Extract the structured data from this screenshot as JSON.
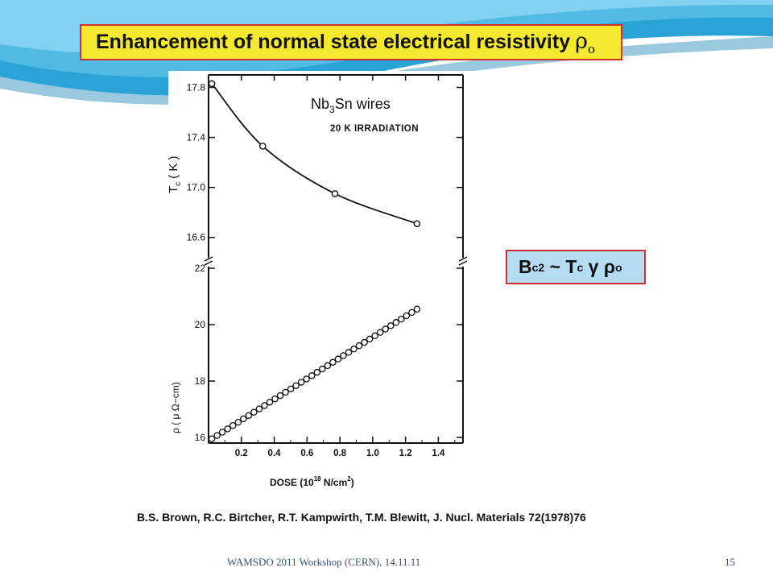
{
  "slide": {
    "title": "Enhancement of  normal state electrical resistivity",
    "title_symbol": "ρ",
    "title_symbol_sub": "o",
    "formula": {
      "b": "B",
      "b_sub": "c2",
      "rest": " ~ T",
      "t_sub": "c",
      "tail": " γ ρ",
      "tail_sub": "o"
    },
    "citation": "B.S. Brown, R.C. Birtcher, R.T. Kampwirth, T.M. Blewitt, J. Nucl. Materials 72(1978)76",
    "footer": "WAMSDO 2011 Workshop (CERN), 14.11.11",
    "page_number": "15",
    "colors": {
      "title_bg": "#f5e930",
      "box_border": "#d23030",
      "formula_bg": "#b4dcf3",
      "header_blue": "#2aa3d6"
    }
  },
  "chart_data": [
    {
      "type": "line",
      "annotation_main": "Nb",
      "annotation_sub": "3",
      "annotation_tail": "Sn wires",
      "annotation_2": "20 K IRRADIATION",
      "ylabel_main": "T",
      "ylabel_sub": "c",
      "ylabel_unit": "( K )",
      "ylim": [
        16.45,
        17.9
      ],
      "yticks": [
        "17.8",
        "17.4",
        "17.0",
        "16.6"
      ],
      "x": [
        0.02,
        0.33,
        0.77,
        1.27
      ],
      "y": [
        17.83,
        17.33,
        16.95,
        16.71
      ],
      "grid": false
    },
    {
      "type": "scatter",
      "ylabel": "ρ ( μ Ω−cm)",
      "ylim": [
        15.8,
        22.2
      ],
      "yticks": [
        "22",
        "20",
        "18",
        "16"
      ],
      "x_start": 0.02,
      "x_end": 1.27,
      "y_start": 15.95,
      "y_end": 20.55,
      "point_count": 40,
      "xlabel": "DOSE (10",
      "xlabel_exp": "18",
      "xlabel_unit": " N/cm",
      "xlabel_unit_exp": "2",
      "xlabel_close": ")",
      "xlim": [
        0,
        1.55
      ],
      "xticks": [
        "0.2",
        "0.4",
        "0.6",
        "0.8",
        "1.0",
        "1.2",
        "1.4"
      ],
      "grid": false
    }
  ]
}
